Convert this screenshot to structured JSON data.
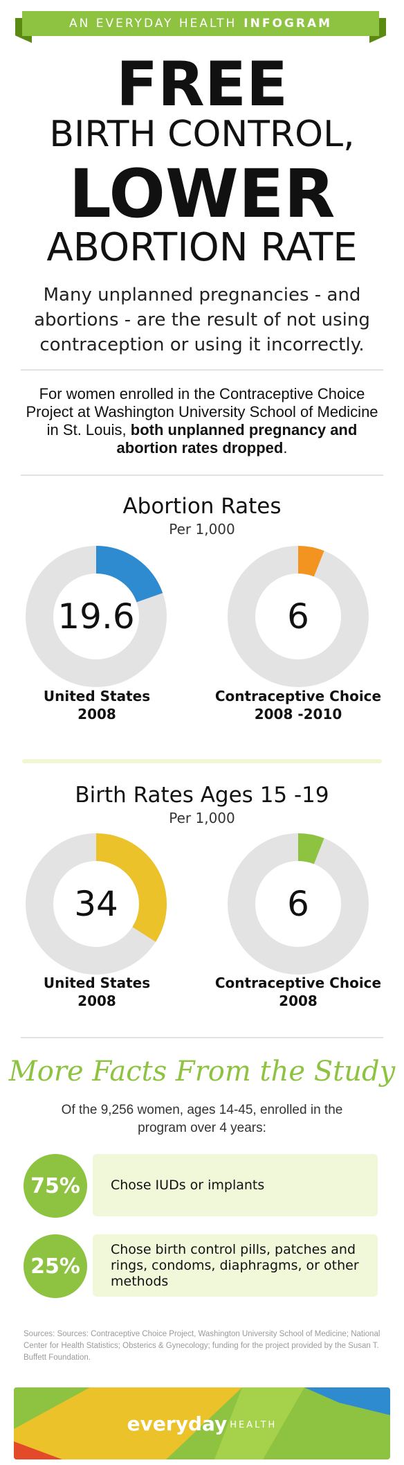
{
  "banner": {
    "prefix": "AN EVERYDAY HEALTH",
    "suffix": "INFOGRAM"
  },
  "headline": {
    "line1": "FREE",
    "line2": "BIRTH CONTROL,",
    "line3": "LOWER",
    "line4": "ABORTION RATE"
  },
  "intro": "Many unplanned pregnancies - and abortions - are the result of not using contraception or using it incorrectly.",
  "study": {
    "text": "For women enrolled in the Contraceptive Choice Project at Washington University School of Medicine in St. Louis, ",
    "bold": "both unplanned pregnancy and abortion rates dropped",
    "end": "."
  },
  "abortion_section": {
    "title": "Abortion Rates",
    "subtitle": "Per 1,000",
    "charts": [
      {
        "value": "19.6",
        "fraction": 0.196,
        "color": "#2e8bd0",
        "label_line1": "United States",
        "label_line2": "2008"
      },
      {
        "value": "6",
        "fraction": 0.06,
        "color": "#f39420",
        "label_line1": "Contraceptive Choice",
        "label_line2": "2008 -2010"
      }
    ]
  },
  "birth_section": {
    "title": "Birth Rates Ages 15 -19",
    "subtitle": "Per 1,000",
    "charts": [
      {
        "value": "34",
        "fraction": 0.34,
        "color": "#ebc229",
        "label_line1": "United States",
        "label_line2": "2008"
      },
      {
        "value": "6",
        "fraction": 0.06,
        "color": "#8dc341",
        "label_line1": "Contraceptive Choice",
        "label_line2": "2008"
      }
    ]
  },
  "facts": {
    "title": "More Facts From the Study",
    "subtitle": "Of the 9,256 women, ages 14-45, enrolled in the program over 4 years:",
    "items": [
      {
        "percent": "75%",
        "text": "Chose IUDs or implants"
      },
      {
        "percent": "25%",
        "text": "Chose birth control pills, patches and rings, condoms, diaphragms, or other methods"
      }
    ]
  },
  "sources": "Sources: Sources: Contraceptive Choice Project, Washington University School of Medicine; National Center for Health Statistics; Obsterics & Gynecology; funding for the project provided by the Susan T.  Buffett Foundation.",
  "footer": {
    "brand": "everyday",
    "brand_small": "HEALTH"
  },
  "colors": {
    "green": "#8dc341",
    "dark_green": "#5a8a12",
    "track": "#e3e3e3",
    "light_green_bg": "#f1f8d9"
  }
}
